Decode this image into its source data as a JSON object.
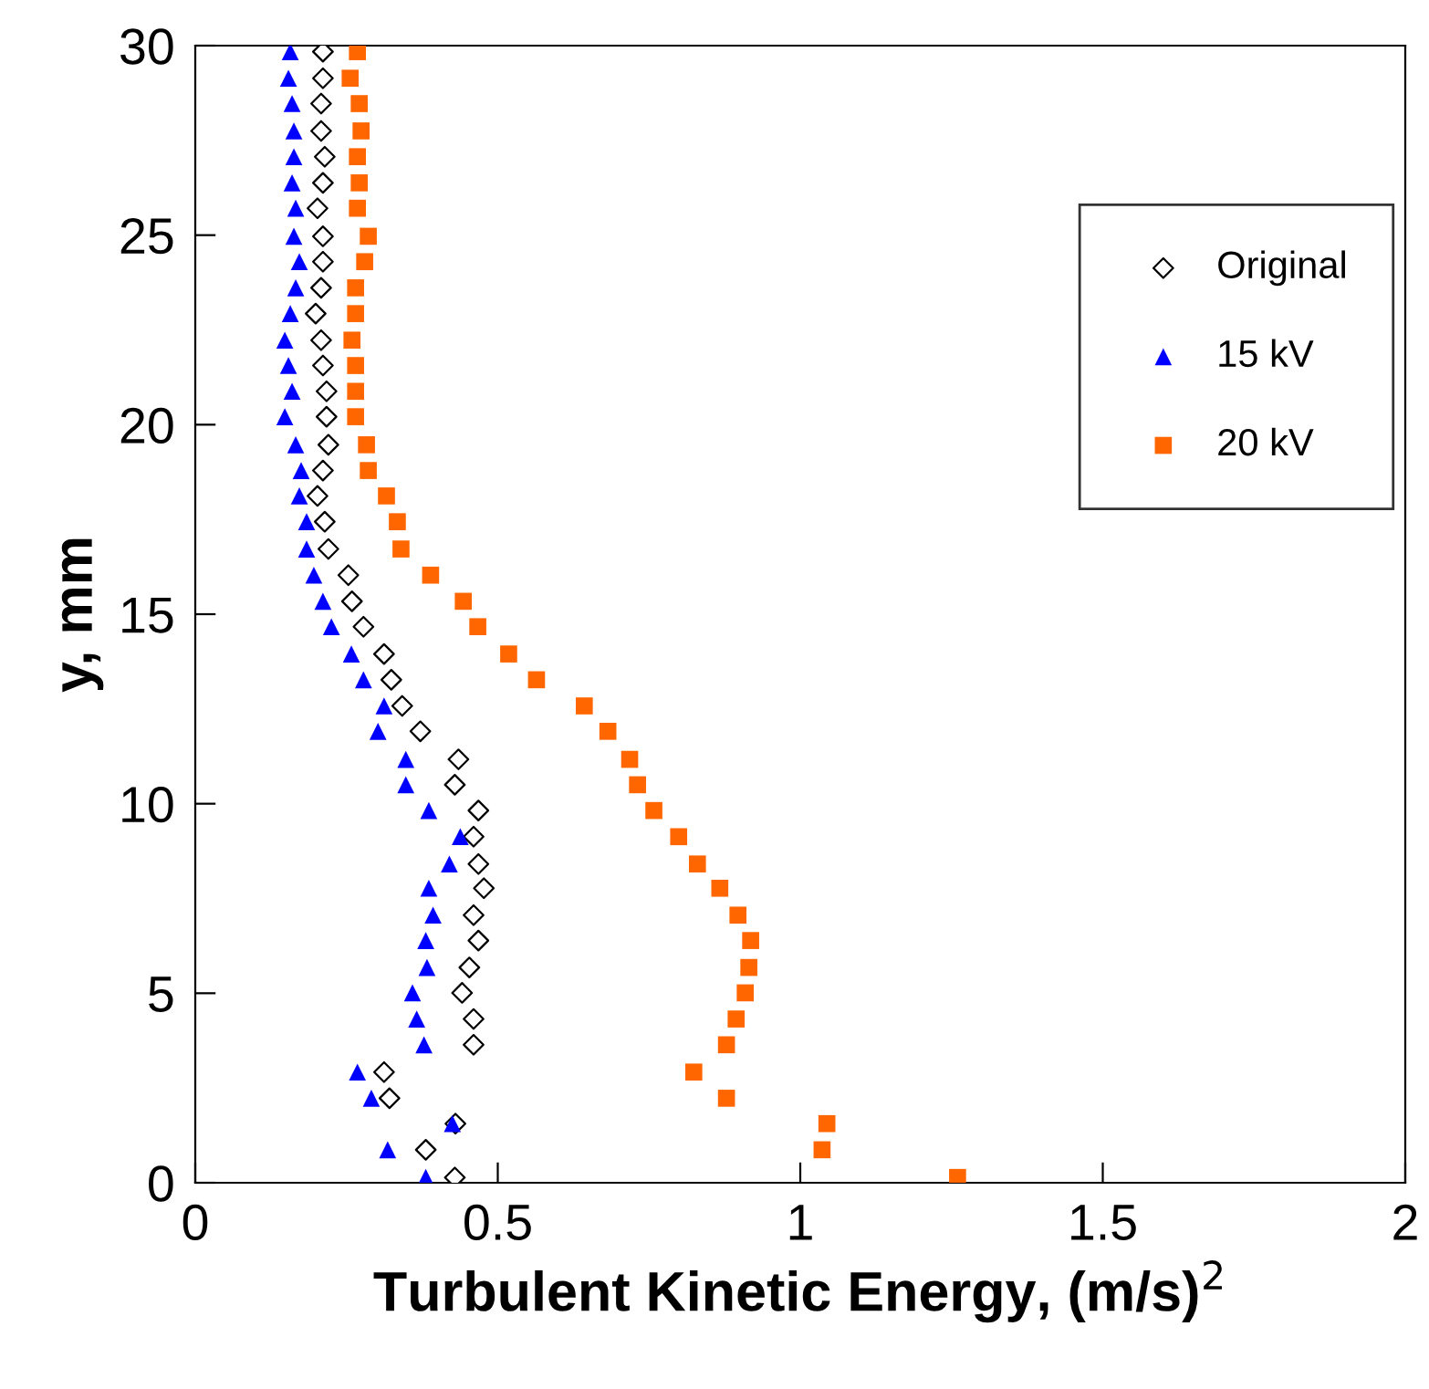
{
  "chart_data": {
    "type": "scatter",
    "xlabel": "Turbulent Kinetic Energy, (m/s)$^{2}$",
    "ylabel": "y, mm",
    "xlim": [
      0,
      2
    ],
    "xticks": [
      0,
      0.5,
      1,
      1.5,
      2
    ],
    "ylim": [
      0,
      30
    ],
    "yticks": [
      0,
      5,
      10,
      15,
      20,
      25,
      30
    ],
    "grid": false,
    "legend": "top right",
    "series": [
      {
        "name": "Original",
        "color": "#000000",
        "marker": "diamond",
        "x": [
          0.211,
          0.211,
          0.208,
          0.208,
          0.214,
          0.211,
          0.202,
          0.211,
          0.211,
          0.208,
          0.199,
          0.208,
          0.211,
          0.217,
          0.217,
          0.22,
          0.211,
          0.202,
          0.214,
          0.22,
          0.253,
          0.259,
          0.278,
          0.312,
          0.324,
          0.342,
          0.372,
          0.435,
          0.429,
          0.468,
          0.46,
          0.468,
          0.477,
          0.46,
          0.468,
          0.453,
          0.441,
          0.46,
          0.46,
          0.312,
          0.321,
          0.43,
          0.381,
          0.429
        ],
        "values": [
          29.84,
          29.14,
          28.47,
          27.75,
          27.07,
          26.38,
          25.71,
          24.97,
          24.3,
          23.61,
          22.93,
          22.23,
          21.56,
          20.88,
          20.21,
          19.47,
          18.79,
          18.12,
          17.44,
          16.72,
          16.03,
          15.34,
          14.67,
          13.95,
          13.27,
          12.58,
          11.91,
          11.17,
          10.5,
          9.82,
          9.13,
          8.41,
          7.77,
          7.06,
          6.39,
          5.68,
          5.01,
          4.32,
          3.64,
          2.92,
          2.23,
          1.56,
          0.87,
          0.14
        ]
      },
      {
        "name": "15 kV",
        "color": "#0000ff",
        "marker": "triangle",
        "x": [
          0.157,
          0.154,
          0.16,
          0.163,
          0.163,
          0.16,
          0.166,
          0.163,
          0.172,
          0.166,
          0.157,
          0.148,
          0.154,
          0.16,
          0.148,
          0.166,
          0.175,
          0.172,
          0.184,
          0.184,
          0.196,
          0.211,
          0.225,
          0.258,
          0.278,
          0.312,
          0.302,
          0.348,
          0.348,
          0.386,
          0.438,
          0.42,
          0.386,
          0.393,
          0.381,
          0.383,
          0.359,
          0.366,
          0.378,
          0.268,
          0.291,
          0.425,
          0.318,
          0.381
        ],
        "values": [
          29.84,
          29.14,
          28.47,
          27.75,
          27.07,
          26.38,
          25.71,
          24.97,
          24.3,
          23.61,
          22.93,
          22.23,
          21.56,
          20.88,
          20.21,
          19.47,
          18.79,
          18.12,
          17.44,
          16.72,
          16.03,
          15.34,
          14.67,
          13.95,
          13.27,
          12.58,
          11.91,
          11.17,
          10.5,
          9.82,
          9.13,
          8.41,
          7.77,
          7.06,
          6.39,
          5.68,
          5.01,
          4.32,
          3.64,
          2.92,
          2.23,
          1.56,
          0.87,
          0.14
        ]
      },
      {
        "name": "20 kV",
        "color": "#ff6600",
        "marker": "square",
        "x": [
          0.268,
          0.256,
          0.271,
          0.274,
          0.268,
          0.271,
          0.268,
          0.286,
          0.28,
          0.265,
          0.265,
          0.259,
          0.265,
          0.265,
          0.265,
          0.283,
          0.286,
          0.316,
          0.334,
          0.34,
          0.389,
          0.443,
          0.467,
          0.518,
          0.564,
          0.643,
          0.682,
          0.718,
          0.731,
          0.758,
          0.799,
          0.83,
          0.867,
          0.897,
          0.918,
          0.915,
          0.909,
          0.894,
          0.878,
          0.824,
          0.878,
          1.044,
          1.036,
          1.26
        ],
        "values": [
          29.84,
          29.14,
          28.47,
          27.75,
          27.07,
          26.38,
          25.71,
          24.97,
          24.3,
          23.61,
          22.93,
          22.23,
          21.56,
          20.88,
          20.21,
          19.47,
          18.79,
          18.12,
          17.44,
          16.72,
          16.03,
          15.34,
          14.67,
          13.95,
          13.27,
          12.58,
          11.91,
          11.17,
          10.5,
          9.82,
          9.13,
          8.41,
          7.77,
          7.06,
          6.39,
          5.68,
          5.01,
          4.32,
          3.64,
          2.92,
          2.23,
          1.56,
          0.87,
          0.14
        ]
      }
    ]
  }
}
